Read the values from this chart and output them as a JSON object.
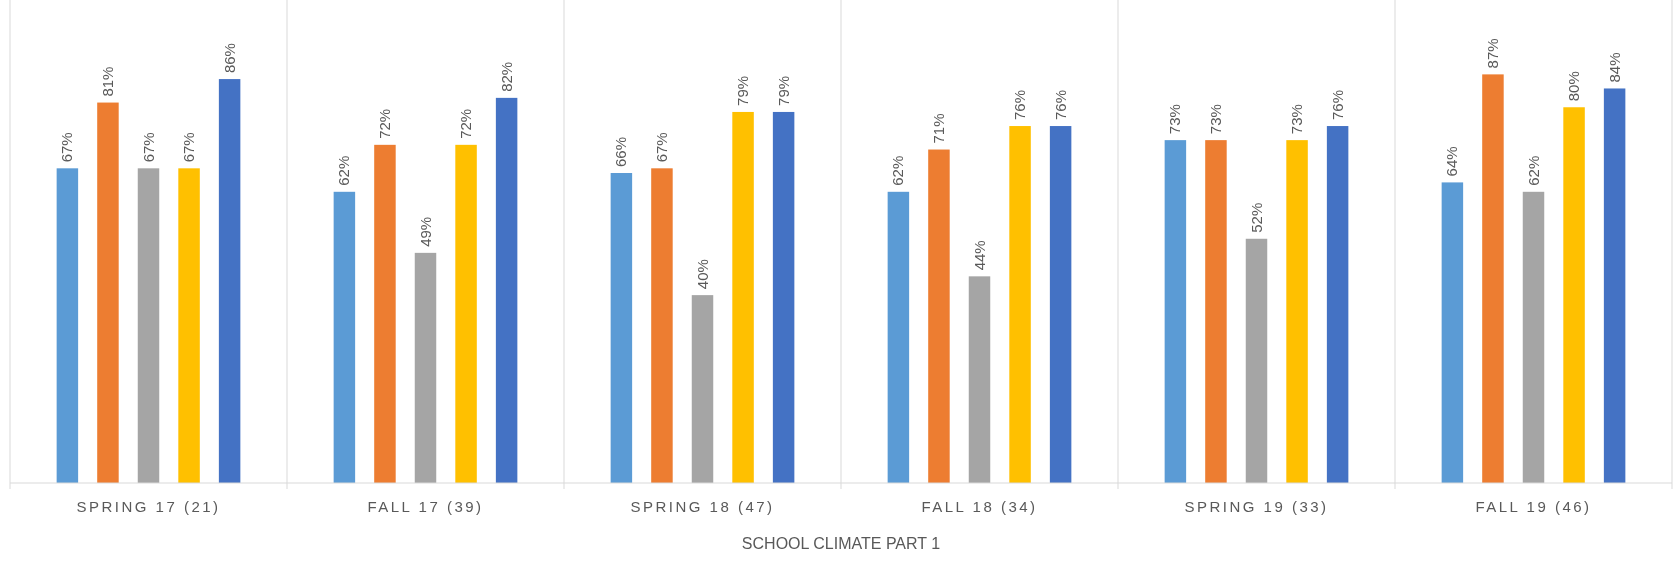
{
  "chart_data": {
    "type": "bar",
    "xlabel": "SCHOOL CLIMATE PART 1",
    "categories": [
      "SPRING 17 (21)",
      "FALL 17 (39)",
      "SPRING 18 (47)",
      "FALL 18 (34)",
      "SPRING 19 (33)",
      "FALL 19 (46)"
    ],
    "tick_labels": "x",
    "series": [
      {
        "color": "#5b9bd5",
        "values": [
          67,
          62,
          66,
          62,
          73,
          64
        ],
        "value_labels": [
          "67%",
          "62%",
          "66%",
          "62%",
          "73%",
          "64%"
        ]
      },
      {
        "color": "#ed7d31",
        "values": [
          81,
          72,
          67,
          71,
          73,
          87
        ],
        "value_labels": [
          "81%",
          "72%",
          "67%",
          "71%",
          "73%",
          "87%"
        ]
      },
      {
        "color": "#a5a5a5",
        "values": [
          67,
          49,
          40,
          44,
          52,
          62
        ],
        "value_labels": [
          "67%",
          "49%",
          "40%",
          "44%",
          "52%",
          "62%"
        ]
      },
      {
        "color": "#ffc000",
        "values": [
          67,
          72,
          79,
          76,
          73,
          80
        ],
        "value_labels": [
          "67%",
          "72%",
          "79%",
          "76%",
          "73%",
          "80%"
        ]
      },
      {
        "color": "#4472c4",
        "values": [
          86,
          82,
          79,
          76,
          76,
          84
        ],
        "value_labels": [
          "86%",
          "82%",
          "79%",
          "76%",
          "76%",
          "84%"
        ]
      }
    ]
  }
}
